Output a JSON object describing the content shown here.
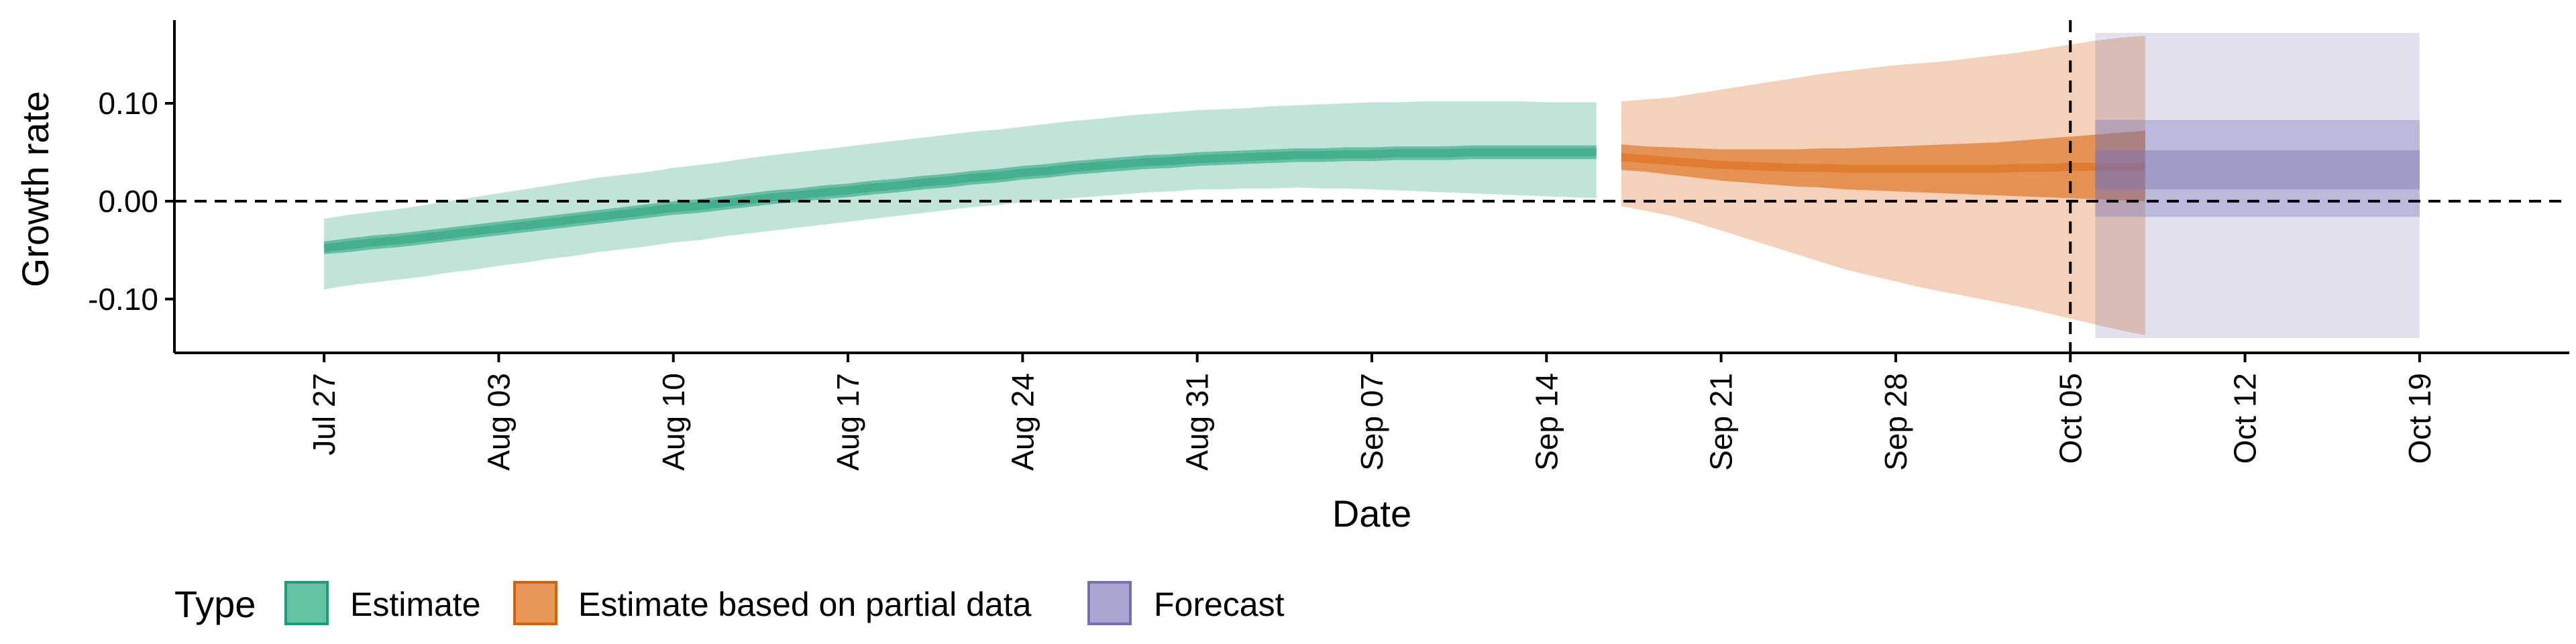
{
  "chart_data": {
    "type": "area",
    "xlabel": "Date",
    "ylabel": "Growth rate",
    "x_ticks": [
      "Jul 27",
      "Aug 03",
      "Aug 10",
      "Aug 17",
      "Aug 24",
      "Aug 31",
      "Sep 07",
      "Sep 14",
      "Sep 21",
      "Sep 28",
      "Oct 05",
      "Oct 12",
      "Oct 19"
    ],
    "y_ticks": [
      "-0.10",
      "0.00",
      "0.10"
    ],
    "ylim": [
      -0.155,
      0.185
    ],
    "xlim": [
      "2020-07-21",
      "2020-10-25"
    ],
    "hline_y": 0.0,
    "vline_date": "2020-10-05",
    "grid": false,
    "legend_position": "bottom",
    "legend_title": "Type",
    "legend": [
      {
        "label": "Estimate",
        "fill": "#66c2a5",
        "stroke": "#1b9e77"
      },
      {
        "label": "Estimate based on partial data",
        "fill": "#e8975a",
        "stroke": "#d95f02"
      },
      {
        "label": "Forecast",
        "fill": "#a9a7d1",
        "stroke": "#7570b3"
      }
    ],
    "series": [
      {
        "name": "Estimate",
        "color": "#1b9e77",
        "start_date": "2020-07-27",
        "points": [
          [
            -0.048,
            -0.041,
            -0.054,
            -0.018,
            -0.09
          ],
          [
            -0.045,
            -0.038,
            -0.052,
            -0.014,
            -0.086
          ],
          [
            -0.042,
            -0.035,
            -0.049,
            -0.011,
            -0.083
          ],
          [
            -0.04,
            -0.033,
            -0.047,
            -0.008,
            -0.08
          ],
          [
            -0.037,
            -0.03,
            -0.044,
            -0.004,
            -0.077
          ],
          [
            -0.034,
            -0.027,
            -0.041,
            0.0,
            -0.073
          ],
          [
            -0.031,
            -0.024,
            -0.038,
            0.004,
            -0.07
          ],
          [
            -0.028,
            -0.021,
            -0.035,
            0.008,
            -0.066
          ],
          [
            -0.025,
            -0.018,
            -0.032,
            0.012,
            -0.063
          ],
          [
            -0.022,
            -0.015,
            -0.029,
            0.016,
            -0.059
          ],
          [
            -0.019,
            -0.012,
            -0.026,
            0.02,
            -0.056
          ],
          [
            -0.016,
            -0.009,
            -0.023,
            0.024,
            -0.052
          ],
          [
            -0.013,
            -0.006,
            -0.02,
            0.027,
            -0.049
          ],
          [
            -0.01,
            -0.003,
            -0.017,
            0.03,
            -0.046
          ],
          [
            -0.007,
            0.0,
            -0.014,
            0.034,
            -0.042
          ],
          [
            -0.005,
            0.002,
            -0.012,
            0.037,
            -0.04
          ],
          [
            -0.002,
            0.005,
            -0.009,
            0.04,
            -0.036
          ],
          [
            0.001,
            0.008,
            -0.006,
            0.044,
            -0.033
          ],
          [
            0.004,
            0.011,
            -0.003,
            0.047,
            -0.03
          ],
          [
            0.006,
            0.013,
            -0.001,
            0.05,
            -0.027
          ],
          [
            0.009,
            0.016,
            0.002,
            0.053,
            -0.024
          ],
          [
            0.011,
            0.018,
            0.004,
            0.056,
            -0.021
          ],
          [
            0.014,
            0.021,
            0.007,
            0.059,
            -0.018
          ],
          [
            0.016,
            0.023,
            0.009,
            0.062,
            -0.015
          ],
          [
            0.019,
            0.026,
            0.012,
            0.065,
            -0.012
          ],
          [
            0.021,
            0.028,
            0.014,
            0.068,
            -0.009
          ],
          [
            0.024,
            0.031,
            0.017,
            0.071,
            -0.006
          ],
          [
            0.026,
            0.033,
            0.019,
            0.073,
            -0.004
          ],
          [
            0.029,
            0.036,
            0.022,
            0.076,
            -0.001
          ],
          [
            0.031,
            0.038,
            0.024,
            0.079,
            0.001
          ],
          [
            0.034,
            0.041,
            0.027,
            0.082,
            0.003
          ],
          [
            0.036,
            0.043,
            0.029,
            0.084,
            0.005
          ],
          [
            0.038,
            0.045,
            0.031,
            0.087,
            0.007
          ],
          [
            0.04,
            0.047,
            0.033,
            0.089,
            0.009
          ],
          [
            0.041,
            0.048,
            0.034,
            0.091,
            0.01
          ],
          [
            0.043,
            0.05,
            0.036,
            0.093,
            0.012
          ],
          [
            0.044,
            0.051,
            0.037,
            0.094,
            0.012
          ],
          [
            0.045,
            0.052,
            0.038,
            0.095,
            0.013
          ],
          [
            0.046,
            0.053,
            0.039,
            0.097,
            0.013
          ],
          [
            0.047,
            0.054,
            0.04,
            0.098,
            0.014
          ],
          [
            0.047,
            0.054,
            0.04,
            0.099,
            0.013
          ],
          [
            0.048,
            0.055,
            0.041,
            0.1,
            0.013
          ],
          [
            0.048,
            0.055,
            0.041,
            0.101,
            0.012
          ],
          [
            0.049,
            0.056,
            0.042,
            0.101,
            0.011
          ],
          [
            0.049,
            0.056,
            0.042,
            0.102,
            0.01
          ],
          [
            0.049,
            0.056,
            0.042,
            0.102,
            0.009
          ],
          [
            0.05,
            0.057,
            0.043,
            0.102,
            0.008
          ],
          [
            0.05,
            0.057,
            0.043,
            0.102,
            0.007
          ],
          [
            0.05,
            0.057,
            0.043,
            0.102,
            0.006
          ],
          [
            0.05,
            0.057,
            0.043,
            0.101,
            0.005
          ],
          [
            0.05,
            0.057,
            0.043,
            0.101,
            0.004
          ],
          [
            0.05,
            0.057,
            0.043,
            0.101,
            0.003
          ]
        ]
      },
      {
        "name": "Estimate based on partial data",
        "color": "#d95f02",
        "start_date": "2020-09-17",
        "points": [
          [
            0.045,
            0.058,
            0.032,
            0.102,
            -0.005
          ],
          [
            0.043,
            0.056,
            0.03,
            0.104,
            -0.01
          ],
          [
            0.041,
            0.055,
            0.027,
            0.106,
            -0.015
          ],
          [
            0.039,
            0.054,
            0.024,
            0.11,
            -0.022
          ],
          [
            0.037,
            0.053,
            0.021,
            0.114,
            -0.03
          ],
          [
            0.036,
            0.053,
            0.019,
            0.118,
            -0.038
          ],
          [
            0.035,
            0.053,
            0.017,
            0.122,
            -0.046
          ],
          [
            0.034,
            0.053,
            0.015,
            0.126,
            -0.054
          ],
          [
            0.034,
            0.054,
            0.014,
            0.13,
            -0.062
          ],
          [
            0.033,
            0.054,
            0.012,
            0.133,
            -0.07
          ],
          [
            0.033,
            0.055,
            0.011,
            0.136,
            -0.076
          ],
          [
            0.033,
            0.056,
            0.01,
            0.139,
            -0.082
          ],
          [
            0.033,
            0.057,
            0.009,
            0.141,
            -0.088
          ],
          [
            0.033,
            0.058,
            0.008,
            0.143,
            -0.093
          ],
          [
            0.033,
            0.059,
            0.007,
            0.146,
            -0.098
          ],
          [
            0.033,
            0.06,
            0.006,
            0.149,
            -0.103
          ],
          [
            0.034,
            0.062,
            0.005,
            0.152,
            -0.108
          ],
          [
            0.034,
            0.064,
            0.004,
            0.156,
            -0.114
          ],
          [
            0.035,
            0.066,
            0.003,
            0.16,
            -0.12
          ],
          [
            0.035,
            0.068,
            0.002,
            0.164,
            -0.126
          ],
          [
            0.035,
            0.07,
            0.001,
            0.167,
            -0.132
          ],
          [
            0.035,
            0.072,
            0.0,
            0.169,
            -0.137
          ]
        ]
      }
    ],
    "forecast": {
      "name": "Forecast",
      "color": "#7570b3",
      "start_date": "2020-10-06",
      "end_date": "2020-10-19",
      "median": 0.03,
      "inner": [
        0.012,
        0.052
      ],
      "mid": [
        -0.016,
        0.083
      ],
      "outer": [
        -0.14,
        0.172
      ]
    }
  }
}
